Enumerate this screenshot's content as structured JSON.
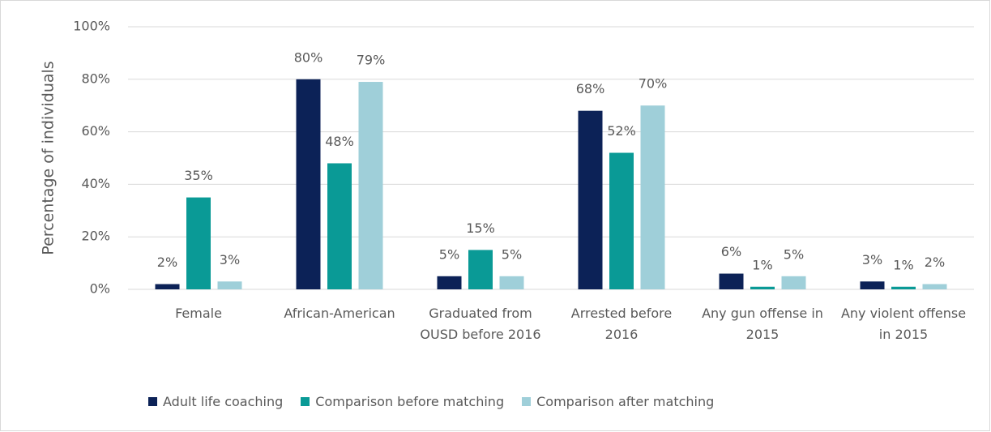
{
  "chart_data": {
    "type": "bar",
    "y_label": "Percentage of individuals",
    "categories": [
      "Female",
      "African-American",
      "Graduated from OUSD before 2016",
      "Arrested before 2016",
      "Any gun offense in 2015",
      "Any violent offense in 2015"
    ],
    "series": [
      {
        "name": "Adult life coaching",
        "color": "#0c2257",
        "values": [
          2,
          80,
          5,
          68,
          6,
          3
        ],
        "value_labels": [
          "2%",
          "80%",
          "5%",
          "68%",
          "6%",
          "3%"
        ]
      },
      {
        "name": "Comparison before matching",
        "color": "#0a9a96",
        "values": [
          35,
          48,
          15,
          52,
          1,
          1
        ],
        "value_labels": [
          "35%",
          "48%",
          "15%",
          "52%",
          "1%",
          "1%"
        ]
      },
      {
        "name": "Comparison after matching",
        "color": "#9fcfd9",
        "values": [
          3,
          79,
          5,
          70,
          5,
          2
        ],
        "value_labels": [
          "3%",
          "79%",
          "5%",
          "70%",
          "5%",
          "2%"
        ]
      }
    ],
    "ylim": [
      0,
      100
    ],
    "yticks": [
      {
        "value": 0,
        "label": "0%"
      },
      {
        "value": 20,
        "label": "20%"
      },
      {
        "value": 40,
        "label": "40%"
      },
      {
        "value": 60,
        "label": "60%"
      },
      {
        "value": 80,
        "label": "80%"
      },
      {
        "value": 100,
        "label": "100%"
      }
    ],
    "grid": true,
    "legend": "bottom"
  }
}
